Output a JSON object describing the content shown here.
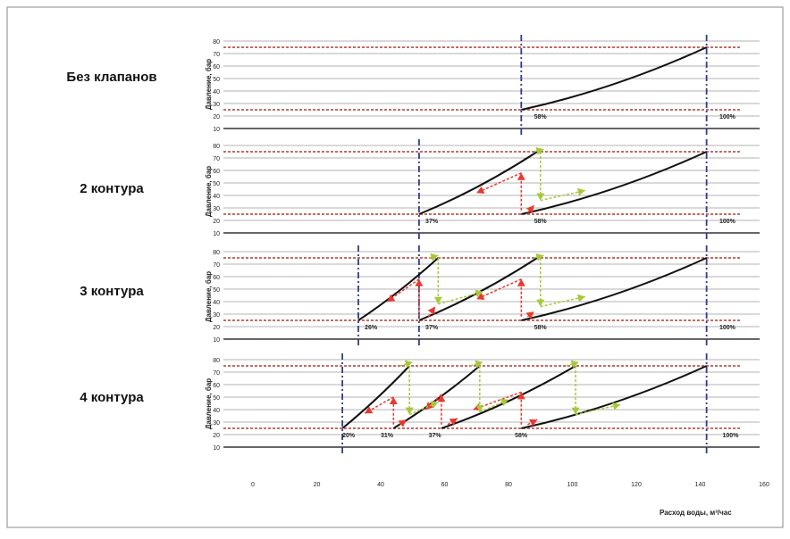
{
  "chart_data": {
    "type": "line",
    "x_label": "Расход воды, м³/час",
    "y_label": "Давление, бар",
    "x_ticks": [
      0,
      20,
      40,
      60,
      80,
      100,
      120,
      140,
      160
    ],
    "y_ticks": [
      10,
      20,
      30,
      40,
      50,
      60,
      70,
      80
    ],
    "limit_lines_bar": [
      25,
      75
    ],
    "panels": [
      {
        "label": "Без клапанов",
        "verticals_x": [
          84,
          142
        ],
        "curves": [
          {
            "x": [
              84,
              142
            ],
            "y": [
              25,
              75
            ]
          }
        ],
        "percent_labels": [
          {
            "text": "58%",
            "x": 88
          },
          {
            "text": "100%",
            "x": 146
          }
        ],
        "red_arrows": [],
        "green_arrows": []
      },
      {
        "label": "2 контура",
        "verticals_x": [
          52,
          142
        ],
        "curves": [
          {
            "x": [
              52,
              89
            ],
            "y": [
              25,
              75
            ]
          },
          {
            "x": [
              84,
              142
            ],
            "y": [
              25,
              75
            ]
          }
        ],
        "percent_labels": [
          {
            "text": "37%",
            "x": 54
          },
          {
            "text": "58%",
            "x": 88
          },
          {
            "text": "100%",
            "x": 146
          }
        ],
        "red_arrows": [
          {
            "from": [
              84,
              28
            ],
            "to": [
              84,
              58
            ]
          },
          {
            "from": [
              84,
              58
            ],
            "to": [
              70,
              42
            ]
          },
          {
            "from": [
              86,
              26
            ],
            "to": [
              88,
              32
            ]
          }
        ],
        "green_arrows": [
          {
            "from": [
              90,
              75
            ],
            "to": [
              90,
              36
            ]
          },
          {
            "from": [
              90,
              36
            ],
            "to": [
              104,
              44
            ]
          },
          {
            "from": [
              88,
              75
            ],
            "to": [
              91,
              77
            ]
          }
        ]
      },
      {
        "label": "3 контура",
        "verticals_x": [
          33,
          52,
          142
        ],
        "curves": [
          {
            "x": [
              33,
              58
            ],
            "y": [
              25,
              75
            ]
          },
          {
            "x": [
              52,
              89
            ],
            "y": [
              25,
              75
            ]
          },
          {
            "x": [
              84,
              142
            ],
            "y": [
              25,
              75
            ]
          }
        ],
        "percent_labels": [
          {
            "text": "26%",
            "x": 35
          },
          {
            "text": "37%",
            "x": 54
          },
          {
            "text": "58%",
            "x": 88
          },
          {
            "text": "100%",
            "x": 146
          }
        ],
        "red_arrows": [
          {
            "from": [
              52,
              28
            ],
            "to": [
              52,
              58
            ]
          },
          {
            "from": [
              52,
              58
            ],
            "to": [
              42,
              40
            ]
          },
          {
            "from": [
              84,
              28
            ],
            "to": [
              84,
              58
            ]
          },
          {
            "from": [
              84,
              58
            ],
            "to": [
              70,
              42
            ]
          },
          {
            "from": [
              55,
              28
            ],
            "to": [
              57,
              36
            ]
          },
          {
            "from": [
              86,
              28
            ],
            "to": [
              88,
              32
            ]
          }
        ],
        "green_arrows": [
          {
            "from": [
              58,
              75
            ],
            "to": [
              58,
              38
            ]
          },
          {
            "from": [
              58,
              38
            ],
            "to": [
              72,
              48
            ]
          },
          {
            "from": [
              90,
              75
            ],
            "to": [
              90,
              36
            ]
          },
          {
            "from": [
              90,
              36
            ],
            "to": [
              104,
              44
            ]
          },
          {
            "from": [
              55,
              75
            ],
            "to": [
              58,
              77
            ]
          },
          {
            "from": [
              88,
              75
            ],
            "to": [
              91,
              77
            ]
          }
        ]
      },
      {
        "label": "4 контура",
        "verticals_x": [
          28,
          142
        ],
        "curves": [
          {
            "x": [
              28,
              49
            ],
            "y": [
              25,
              75
            ]
          },
          {
            "x": [
              44,
              71
            ],
            "y": [
              25,
              75
            ]
          },
          {
            "x": [
              59,
              101
            ],
            "y": [
              25,
              75
            ]
          },
          {
            "x": [
              84,
              142
            ],
            "y": [
              25,
              75
            ]
          }
        ],
        "percent_labels": [
          {
            "text": "20%",
            "x": 28
          },
          {
            "text": "31%",
            "x": 40
          },
          {
            "text": "37%",
            "x": 55
          },
          {
            "text": "58%",
            "x": 82
          },
          {
            "text": "100%",
            "x": 147
          }
        ],
        "red_arrows": [
          {
            "from": [
              44,
              28
            ],
            "to": [
              44,
              50
            ]
          },
          {
            "from": [
              44,
              50
            ],
            "to": [
              35,
              37
            ]
          },
          {
            "from": [
              59,
              28
            ],
            "to": [
              59,
              52
            ]
          },
          {
            "from": [
              59,
              52
            ],
            "to": [
              54,
              40
            ]
          },
          {
            "from": [
              84,
              28
            ],
            "to": [
              84,
              54
            ]
          },
          {
            "from": [
              84,
              54
            ],
            "to": [
              69,
              40
            ]
          },
          {
            "from": [
              46,
              28
            ],
            "to": [
              48,
              32
            ]
          },
          {
            "from": [
              61,
              28
            ],
            "to": [
              64,
              33
            ]
          },
          {
            "from": [
              86,
              28
            ],
            "to": [
              89,
              32
            ]
          }
        ],
        "green_arrows": [
          {
            "from": [
              49,
              75
            ],
            "to": [
              49,
              36
            ]
          },
          {
            "from": [
              49,
              36
            ],
            "to": [
              58,
              46
            ]
          },
          {
            "from": [
              71,
              75
            ],
            "to": [
              71,
              38
            ]
          },
          {
            "from": [
              71,
              38
            ],
            "to": [
              80,
              48
            ]
          },
          {
            "from": [
              101,
              75
            ],
            "to": [
              101,
              36
            ]
          },
          {
            "from": [
              101,
              36
            ],
            "to": [
              115,
              44
            ]
          },
          {
            "from": [
              46,
              75
            ],
            "to": [
              50,
              78
            ]
          },
          {
            "from": [
              68,
              75
            ],
            "to": [
              72,
              78
            ]
          },
          {
            "from": [
              98,
              75
            ],
            "to": [
              102,
              78
            ]
          }
        ]
      }
    ]
  },
  "colors": {
    "limit_line": "#b03a2e",
    "grid": "#9a9a9a",
    "curve": "#111111",
    "vertical": "#2f3d8a",
    "red_arrow": "#e8382f",
    "green_arrow": "#a6c83a",
    "frame": "#8a8a8a"
  }
}
